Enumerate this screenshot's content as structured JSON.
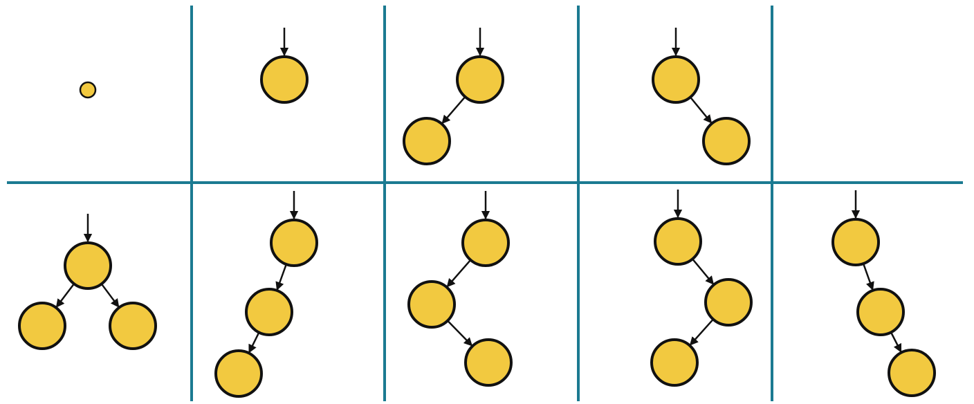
{
  "colors": {
    "node_fill": "#F2C940",
    "node_stroke": "#111111",
    "edge": "#111111",
    "grid_line": "#1B7A91",
    "background": "#FFFFFF"
  },
  "diagram": {
    "type": "binary-tree-shapes",
    "panels": [
      {
        "id": "empty-tree",
        "nodes": [],
        "edges": [],
        "marker": "null-dot"
      },
      {
        "id": "single-node",
        "nodes": [
          "r"
        ],
        "edges": []
      },
      {
        "id": "root-left",
        "nodes": [
          "r",
          "L"
        ],
        "edges": [
          [
            "r",
            "L"
          ]
        ]
      },
      {
        "id": "root-right",
        "nodes": [
          "r",
          "R"
        ],
        "edges": [
          [
            "r",
            "R"
          ]
        ]
      },
      {
        "id": "blank",
        "nodes": [],
        "edges": []
      },
      {
        "id": "root-left-right",
        "nodes": [
          "r",
          "L",
          "R"
        ],
        "edges": [
          [
            "r",
            "L"
          ],
          [
            "r",
            "R"
          ]
        ]
      },
      {
        "id": "left-left",
        "nodes": [
          "r",
          "L",
          "LL"
        ],
        "edges": [
          [
            "r",
            "L"
          ],
          [
            "L",
            "LL"
          ]
        ]
      },
      {
        "id": "left-right",
        "nodes": [
          "r",
          "L",
          "LR"
        ],
        "edges": [
          [
            "r",
            "L"
          ],
          [
            "L",
            "LR"
          ]
        ]
      },
      {
        "id": "right-left",
        "nodes": [
          "r",
          "R",
          "RL"
        ],
        "edges": [
          [
            "r",
            "R"
          ],
          [
            "R",
            "RL"
          ]
        ]
      },
      {
        "id": "right-right",
        "nodes": [
          "r",
          "R",
          "RR"
        ],
        "edges": [
          [
            "r",
            "R"
          ],
          [
            "R",
            "RR"
          ]
        ]
      }
    ]
  }
}
